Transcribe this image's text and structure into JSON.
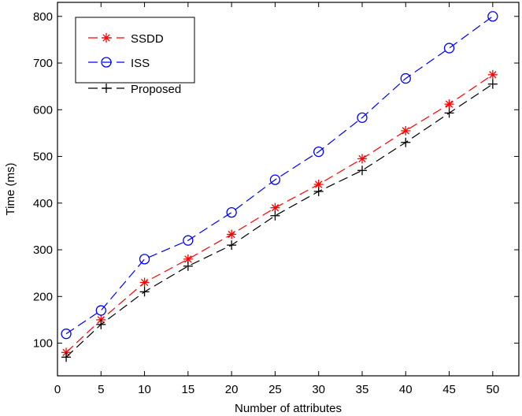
{
  "chart_data": {
    "type": "line",
    "title": "",
    "xlabel": "Number of attributes",
    "ylabel": "Time (ms)",
    "xlim": [
      0,
      53
    ],
    "ylim": [
      30,
      830
    ],
    "xticks": [
      0,
      5,
      10,
      15,
      20,
      25,
      30,
      35,
      40,
      45,
      50
    ],
    "yticks": [
      100,
      200,
      300,
      400,
      500,
      600,
      700,
      800
    ],
    "grid": false,
    "legend_position": "top-left",
    "x": [
      1,
      5,
      10,
      15,
      20,
      25,
      30,
      35,
      40,
      45,
      50
    ],
    "series": [
      {
        "name": "SSDD",
        "color": "#ff0000",
        "marker": "asterisk",
        "values": [
          80,
          150,
          230,
          280,
          333,
          390,
          440,
          495,
          555,
          612,
          675
        ]
      },
      {
        "name": "ISS",
        "color": "#0000ff",
        "marker": "circle",
        "values": [
          120,
          170,
          280,
          320,
          380,
          450,
          510,
          583,
          667,
          732,
          800
        ]
      },
      {
        "name": "Proposed",
        "color": "#000000",
        "marker": "plus",
        "values": [
          70,
          140,
          210,
          265,
          310,
          373,
          425,
          470,
          530,
          593,
          655
        ]
      }
    ]
  }
}
